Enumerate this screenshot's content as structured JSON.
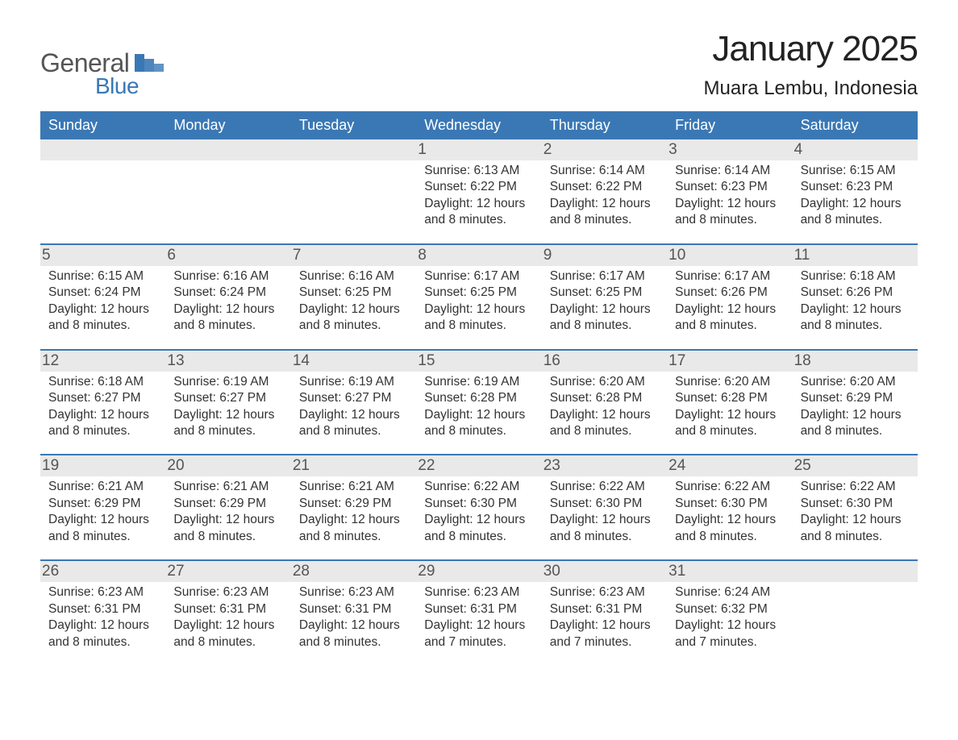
{
  "brand": {
    "word1": "General",
    "word2": "Blue",
    "logo_color": "#3a78b5",
    "text_color": "#555555"
  },
  "title": {
    "month": "January 2025",
    "location": "Muara Lembu, Indonesia"
  },
  "colors": {
    "header_bg": "#3a78b5",
    "header_text": "#ffffff",
    "daynum_bg": "#e9e9e9",
    "week_border": "#3a78b5",
    "body_text": "#333333",
    "page_bg": "#ffffff"
  },
  "dayNames": [
    "Sunday",
    "Monday",
    "Tuesday",
    "Wednesday",
    "Thursday",
    "Friday",
    "Saturday"
  ],
  "weeks": [
    [
      {
        "day": "",
        "sunrise": "",
        "sunset": "",
        "daylight": ""
      },
      {
        "day": "",
        "sunrise": "",
        "sunset": "",
        "daylight": ""
      },
      {
        "day": "",
        "sunrise": "",
        "sunset": "",
        "daylight": ""
      },
      {
        "day": "1",
        "sunrise": "Sunrise: 6:13 AM",
        "sunset": "Sunset: 6:22 PM",
        "daylight": "Daylight: 12 hours and 8 minutes."
      },
      {
        "day": "2",
        "sunrise": "Sunrise: 6:14 AM",
        "sunset": "Sunset: 6:22 PM",
        "daylight": "Daylight: 12 hours and 8 minutes."
      },
      {
        "day": "3",
        "sunrise": "Sunrise: 6:14 AM",
        "sunset": "Sunset: 6:23 PM",
        "daylight": "Daylight: 12 hours and 8 minutes."
      },
      {
        "day": "4",
        "sunrise": "Sunrise: 6:15 AM",
        "sunset": "Sunset: 6:23 PM",
        "daylight": "Daylight: 12 hours and 8 minutes."
      }
    ],
    [
      {
        "day": "5",
        "sunrise": "Sunrise: 6:15 AM",
        "sunset": "Sunset: 6:24 PM",
        "daylight": "Daylight: 12 hours and 8 minutes."
      },
      {
        "day": "6",
        "sunrise": "Sunrise: 6:16 AM",
        "sunset": "Sunset: 6:24 PM",
        "daylight": "Daylight: 12 hours and 8 minutes."
      },
      {
        "day": "7",
        "sunrise": "Sunrise: 6:16 AM",
        "sunset": "Sunset: 6:25 PM",
        "daylight": "Daylight: 12 hours and 8 minutes."
      },
      {
        "day": "8",
        "sunrise": "Sunrise: 6:17 AM",
        "sunset": "Sunset: 6:25 PM",
        "daylight": "Daylight: 12 hours and 8 minutes."
      },
      {
        "day": "9",
        "sunrise": "Sunrise: 6:17 AM",
        "sunset": "Sunset: 6:25 PM",
        "daylight": "Daylight: 12 hours and 8 minutes."
      },
      {
        "day": "10",
        "sunrise": "Sunrise: 6:17 AM",
        "sunset": "Sunset: 6:26 PM",
        "daylight": "Daylight: 12 hours and 8 minutes."
      },
      {
        "day": "11",
        "sunrise": "Sunrise: 6:18 AM",
        "sunset": "Sunset: 6:26 PM",
        "daylight": "Daylight: 12 hours and 8 minutes."
      }
    ],
    [
      {
        "day": "12",
        "sunrise": "Sunrise: 6:18 AM",
        "sunset": "Sunset: 6:27 PM",
        "daylight": "Daylight: 12 hours and 8 minutes."
      },
      {
        "day": "13",
        "sunrise": "Sunrise: 6:19 AM",
        "sunset": "Sunset: 6:27 PM",
        "daylight": "Daylight: 12 hours and 8 minutes."
      },
      {
        "day": "14",
        "sunrise": "Sunrise: 6:19 AM",
        "sunset": "Sunset: 6:27 PM",
        "daylight": "Daylight: 12 hours and 8 minutes."
      },
      {
        "day": "15",
        "sunrise": "Sunrise: 6:19 AM",
        "sunset": "Sunset: 6:28 PM",
        "daylight": "Daylight: 12 hours and 8 minutes."
      },
      {
        "day": "16",
        "sunrise": "Sunrise: 6:20 AM",
        "sunset": "Sunset: 6:28 PM",
        "daylight": "Daylight: 12 hours and 8 minutes."
      },
      {
        "day": "17",
        "sunrise": "Sunrise: 6:20 AM",
        "sunset": "Sunset: 6:28 PM",
        "daylight": "Daylight: 12 hours and 8 minutes."
      },
      {
        "day": "18",
        "sunrise": "Sunrise: 6:20 AM",
        "sunset": "Sunset: 6:29 PM",
        "daylight": "Daylight: 12 hours and 8 minutes."
      }
    ],
    [
      {
        "day": "19",
        "sunrise": "Sunrise: 6:21 AM",
        "sunset": "Sunset: 6:29 PM",
        "daylight": "Daylight: 12 hours and 8 minutes."
      },
      {
        "day": "20",
        "sunrise": "Sunrise: 6:21 AM",
        "sunset": "Sunset: 6:29 PM",
        "daylight": "Daylight: 12 hours and 8 minutes."
      },
      {
        "day": "21",
        "sunrise": "Sunrise: 6:21 AM",
        "sunset": "Sunset: 6:29 PM",
        "daylight": "Daylight: 12 hours and 8 minutes."
      },
      {
        "day": "22",
        "sunrise": "Sunrise: 6:22 AM",
        "sunset": "Sunset: 6:30 PM",
        "daylight": "Daylight: 12 hours and 8 minutes."
      },
      {
        "day": "23",
        "sunrise": "Sunrise: 6:22 AM",
        "sunset": "Sunset: 6:30 PM",
        "daylight": "Daylight: 12 hours and 8 minutes."
      },
      {
        "day": "24",
        "sunrise": "Sunrise: 6:22 AM",
        "sunset": "Sunset: 6:30 PM",
        "daylight": "Daylight: 12 hours and 8 minutes."
      },
      {
        "day": "25",
        "sunrise": "Sunrise: 6:22 AM",
        "sunset": "Sunset: 6:30 PM",
        "daylight": "Daylight: 12 hours and 8 minutes."
      }
    ],
    [
      {
        "day": "26",
        "sunrise": "Sunrise: 6:23 AM",
        "sunset": "Sunset: 6:31 PM",
        "daylight": "Daylight: 12 hours and 8 minutes."
      },
      {
        "day": "27",
        "sunrise": "Sunrise: 6:23 AM",
        "sunset": "Sunset: 6:31 PM",
        "daylight": "Daylight: 12 hours and 8 minutes."
      },
      {
        "day": "28",
        "sunrise": "Sunrise: 6:23 AM",
        "sunset": "Sunset: 6:31 PM",
        "daylight": "Daylight: 12 hours and 8 minutes."
      },
      {
        "day": "29",
        "sunrise": "Sunrise: 6:23 AM",
        "sunset": "Sunset: 6:31 PM",
        "daylight": "Daylight: 12 hours and 7 minutes."
      },
      {
        "day": "30",
        "sunrise": "Sunrise: 6:23 AM",
        "sunset": "Sunset: 6:31 PM",
        "daylight": "Daylight: 12 hours and 7 minutes."
      },
      {
        "day": "31",
        "sunrise": "Sunrise: 6:24 AM",
        "sunset": "Sunset: 6:32 PM",
        "daylight": "Daylight: 12 hours and 7 minutes."
      },
      {
        "day": "",
        "sunrise": "",
        "sunset": "",
        "daylight": ""
      }
    ]
  ]
}
